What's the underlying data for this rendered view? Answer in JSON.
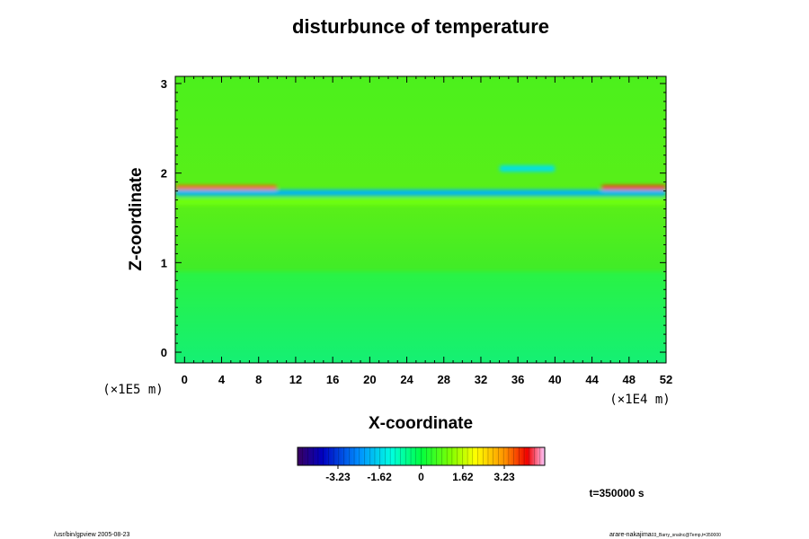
{
  "chart_data": {
    "type": "heatmap",
    "title": "disturbunce of temperature",
    "xlabel": "X-coordinate",
    "ylabel": "Z-coordinate",
    "x_unit": "(×1E4 m)",
    "y_unit": "(×1E5 m)",
    "xlim": [
      -1,
      52
    ],
    "ylim": [
      -0.12,
      3.08
    ],
    "x_ticks": [
      "0",
      "4",
      "8",
      "12",
      "16",
      "20",
      "24",
      "28",
      "32",
      "36",
      "40",
      "44",
      "48",
      "52"
    ],
    "y_ticks": [
      "0",
      "1",
      "2",
      "3"
    ],
    "colorbar": {
      "range": [
        -4.8,
        4.8
      ],
      "ticks": [
        {
          "value": -3.23,
          "label": "-3.23"
        },
        {
          "value": -1.62,
          "label": "-1.62"
        },
        {
          "value": 0,
          "label": "0"
        },
        {
          "value": 1.62,
          "label": "1.62"
        },
        {
          "value": 3.23,
          "label": "3.23"
        }
      ]
    },
    "features": [
      {
        "z": 1.84,
        "value": 3.5,
        "extent": [
          -1,
          10
        ],
        "desc": "warm streak left"
      },
      {
        "z": 1.84,
        "value": 3.8,
        "extent": [
          45,
          52
        ],
        "desc": "warm streak right"
      },
      {
        "z": 1.78,
        "value": -2.0,
        "extent": [
          -1,
          52
        ],
        "desc": "cool band"
      },
      {
        "z": 2.05,
        "value": -1.5,
        "extent": [
          34,
          40
        ],
        "desc": "cool patch"
      },
      {
        "z": 1.68,
        "value": 1.0,
        "extent": [
          -1,
          52
        ],
        "desc": "mild warm band"
      }
    ],
    "background_value": 0.0,
    "lower_region_value": -0.4
  },
  "annotations": {
    "time": "t=350000 s",
    "footer_left": "/usr/bin/gpview 2005-08-23",
    "footer_right": "arare-nakajima",
    "footer_right_small": "03_Barry_snalnc@Temp,t=350000"
  }
}
